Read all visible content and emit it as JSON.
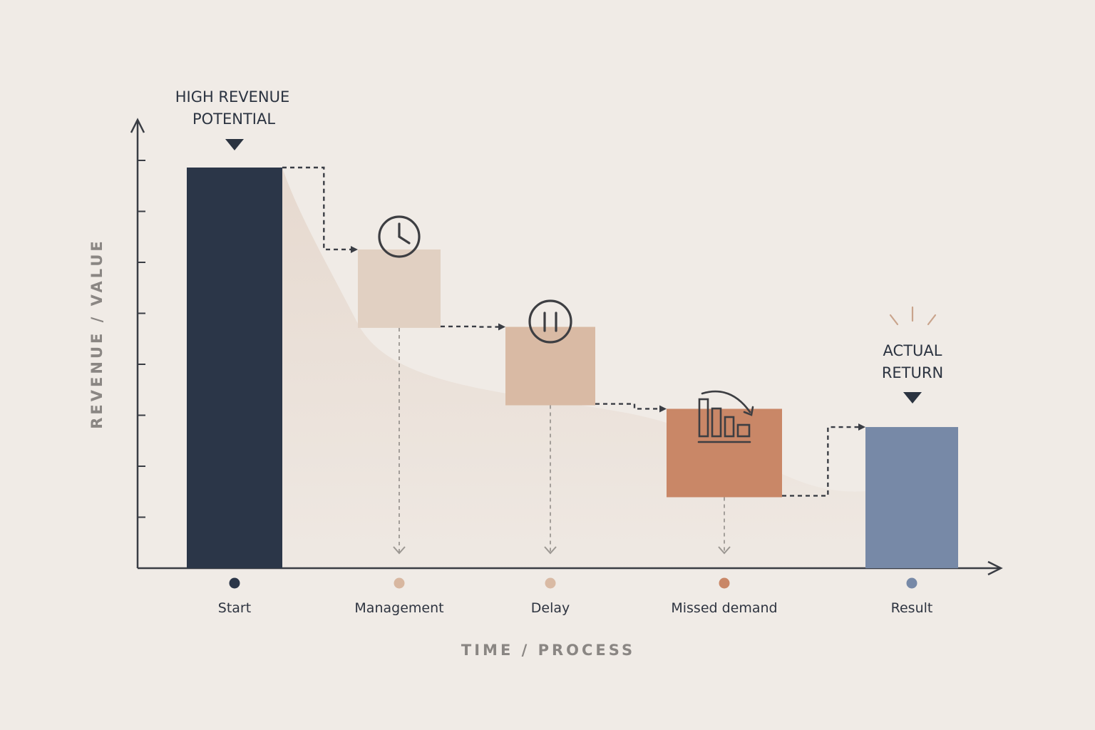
{
  "chart_data": {
    "type": "bar",
    "title": "",
    "xlabel": "TIME / PROCESS",
    "ylabel": "REVENUE / VALUE",
    "categories": [
      "Start",
      "Management",
      "Delay",
      "Missed demand",
      "Result"
    ],
    "values": [
      8.8,
      7.0,
      5.3,
      3.5,
      3.1
    ],
    "ylim": [
      0,
      10
    ],
    "grid": false,
    "category_colors": [
      "#2b3648",
      "#e1d0c2",
      "#d9baa4",
      "#c98767",
      "#7789a7"
    ],
    "bars": [
      {
        "category": "Start",
        "value": 8.8,
        "kind": "bar",
        "color": "#2b3648"
      },
      {
        "category": "Management",
        "value": 7.0,
        "kind": "step",
        "icon": "clock-icon",
        "color": "#e1d0c2"
      },
      {
        "category": "Delay",
        "value": 5.3,
        "kind": "step",
        "icon": "pause-icon",
        "color": "#d9baa4"
      },
      {
        "category": "Missed demand",
        "value": 3.5,
        "kind": "step",
        "icon": "declining-bars-icon",
        "color": "#c98767"
      },
      {
        "category": "Result",
        "value": 3.1,
        "kind": "bar",
        "color": "#7789a7"
      }
    ],
    "annotations": [
      {
        "target": "Start",
        "lines": [
          "HIGH REVENUE",
          "POTENTIAL"
        ]
      },
      {
        "target": "Result",
        "lines": [
          "ACTUAL",
          "RETURN"
        ]
      }
    ]
  }
}
